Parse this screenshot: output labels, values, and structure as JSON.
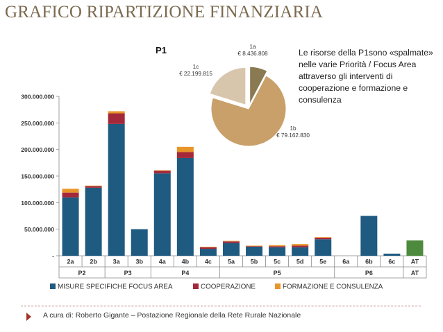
{
  "page": {
    "title": "GRAFICO RIPARTIZIONE FINANZIARIA",
    "note": "Le risorse della P1sono «spalmate» nelle varie Priorità / Focus Area attraverso gli interventi di cooperazione e formazione e consulenza",
    "footer": "A cura di: Roberto Gigante – Postazione Regionale della Rete Rurale Nazionale"
  },
  "colors": {
    "title": "#7b6a50",
    "misure": "#1f5a80",
    "cooperazione": "#a3283a",
    "formazione": "#e8952a",
    "at": "#4e8a3d",
    "pie_1a": "#8a7a52",
    "pie_1b": "#c9a06a",
    "pie_1c": "#d8c6ac"
  },
  "chart_data": [
    {
      "type": "bar",
      "stacked": true,
      "categories": [
        "2a",
        "2b",
        "3a",
        "3b",
        "4a",
        "4b",
        "4c",
        "5a",
        "5b",
        "5c",
        "5d",
        "5e",
        "6a",
        "6b",
        "6c",
        "AT"
      ],
      "groups": [
        {
          "label": "P2",
          "categories": [
            "2a",
            "2b"
          ]
        },
        {
          "label": "P3",
          "categories": [
            "3a",
            "3b"
          ]
        },
        {
          "label": "P4",
          "categories": [
            "4a",
            "4b",
            "4c"
          ]
        },
        {
          "label": "P5",
          "categories": [
            "5a",
            "5b",
            "5c",
            "5d",
            "5e"
          ]
        },
        {
          "label": "P6",
          "categories": [
            "6a",
            "6b",
            "6c"
          ]
        },
        {
          "label": "AT",
          "categories": [
            "AT"
          ]
        }
      ],
      "series": [
        {
          "name": "MISURE SPECIFICHE FOCUS AREA",
          "values": [
            110000000,
            128000000,
            248000000,
            50000000,
            155000000,
            184000000,
            13000000,
            24000000,
            17000000,
            16000000,
            16000000,
            31000000,
            0,
            75000000,
            4000000,
            29000000
          ]
        },
        {
          "name": "COOPERAZIONE",
          "values": [
            9000000,
            3000000,
            20000000,
            0,
            5000000,
            11000000,
            3000000,
            3000000,
            1000000,
            2000000,
            3000000,
            3000000,
            0,
            0,
            0,
            0
          ]
        },
        {
          "name": "FORMAZIONE E CONSULENZA",
          "values": [
            7000000,
            1000000,
            4000000,
            0,
            1000000,
            10000000,
            1000000,
            1000000,
            1000000,
            2000000,
            3000000,
            1000000,
            0,
            0,
            0,
            0
          ]
        }
      ],
      "y_ticks": [
        "-",
        "50.000.000",
        "100.000.000",
        "150.000.000",
        "200.000.000",
        "250.000.000",
        "300.000.000"
      ],
      "ylim": [
        0,
        300000000
      ],
      "legend": [
        "MISURE SPECIFICHE FOCUS AREA",
        "COOPERAZIONE",
        "FORMAZIONE E CONSULENZA"
      ],
      "legend_position": "bottom"
    },
    {
      "type": "pie",
      "title": "P1",
      "labels": [
        "1a",
        "1b",
        "1c"
      ],
      "values": [
        8436808,
        79162830,
        22199815
      ],
      "value_labels": [
        "€ 8.436.808",
        "€ 79.162.830",
        "€ 22.199.815"
      ]
    }
  ]
}
